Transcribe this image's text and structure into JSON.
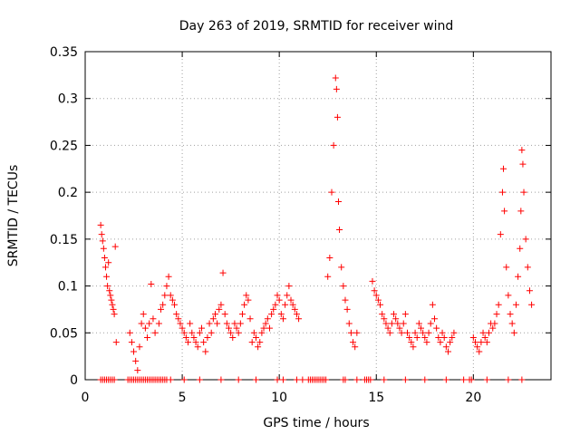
{
  "chart_data": {
    "type": "scatter",
    "title": "Day 263 of 2019, SRMTID for receiver wind",
    "xlabel": "GPS time / hours",
    "ylabel": "SRMTID / TECUs",
    "xlim": [
      0,
      24
    ],
    "ylim": [
      0,
      0.35
    ],
    "xticks": [
      0,
      5,
      10,
      15,
      20
    ],
    "xtick_labels": [
      "0",
      "5",
      "10",
      "15",
      "20"
    ],
    "yticks": [
      0,
      0.05,
      0.1,
      0.15,
      0.2,
      0.25,
      0.3,
      0.35
    ],
    "ytick_labels": [
      "0",
      "0.05",
      "0.1",
      "0.15",
      "0.2",
      "0.25",
      "0.3",
      "0.35"
    ],
    "grid": true,
    "marker": "+",
    "colors": {
      "series": "#ff0000",
      "axes": "#000000",
      "grid": "#a0a0a0"
    },
    "series": [
      {
        "name": "SRMTID",
        "points": [
          [
            0.8,
            0.165
          ],
          [
            0.85,
            0.155
          ],
          [
            0.9,
            0.148
          ],
          [
            0.95,
            0.14
          ],
          [
            1.0,
            0.13
          ],
          [
            1.05,
            0.12
          ],
          [
            1.1,
            0.11
          ],
          [
            1.15,
            0.1
          ],
          [
            1.2,
            0.125
          ],
          [
            1.25,
            0.095
          ],
          [
            1.3,
            0.09
          ],
          [
            1.35,
            0.085
          ],
          [
            1.4,
            0.08
          ],
          [
            1.45,
            0.075
          ],
          [
            1.5,
            0.07
          ],
          [
            1.55,
            0.142
          ],
          [
            1.6,
            0.04
          ],
          [
            2.3,
            0.05
          ],
          [
            2.4,
            0.04
          ],
          [
            2.5,
            0.03
          ],
          [
            2.6,
            0.02
          ],
          [
            2.7,
            0.01
          ],
          [
            2.8,
            0.035
          ],
          [
            2.9,
            0.06
          ],
          [
            3.0,
            0.07
          ],
          [
            3.1,
            0.055
          ],
          [
            3.2,
            0.045
          ],
          [
            3.3,
            0.06
          ],
          [
            3.4,
            0.102
          ],
          [
            3.5,
            0.065
          ],
          [
            3.6,
            0.05
          ],
          [
            3.8,
            0.06
          ],
          [
            3.9,
            0.075
          ],
          [
            4.0,
            0.08
          ],
          [
            4.1,
            0.09
          ],
          [
            4.2,
            0.1
          ],
          [
            4.3,
            0.11
          ],
          [
            4.4,
            0.09
          ],
          [
            4.5,
            0.085
          ],
          [
            4.6,
            0.08
          ],
          [
            4.7,
            0.07
          ],
          [
            4.8,
            0.065
          ],
          [
            4.9,
            0.06
          ],
          [
            5.0,
            0.055
          ],
          [
            5.1,
            0.05
          ],
          [
            5.2,
            0.045
          ],
          [
            5.3,
            0.04
          ],
          [
            5.4,
            0.06
          ],
          [
            5.5,
            0.05
          ],
          [
            5.6,
            0.045
          ],
          [
            5.7,
            0.04
          ],
          [
            5.8,
            0.035
          ],
          [
            5.9,
            0.05
          ],
          [
            6.0,
            0.055
          ],
          [
            6.1,
            0.04
          ],
          [
            6.2,
            0.03
          ],
          [
            6.3,
            0.045
          ],
          [
            6.4,
            0.06
          ],
          [
            6.5,
            0.05
          ],
          [
            6.6,
            0.065
          ],
          [
            6.7,
            0.07
          ],
          [
            6.8,
            0.06
          ],
          [
            6.9,
            0.075
          ],
          [
            7.0,
            0.08
          ],
          [
            7.1,
            0.114
          ],
          [
            7.2,
            0.07
          ],
          [
            7.3,
            0.06
          ],
          [
            7.4,
            0.055
          ],
          [
            7.5,
            0.05
          ],
          [
            7.6,
            0.045
          ],
          [
            7.7,
            0.06
          ],
          [
            7.8,
            0.055
          ],
          [
            7.9,
            0.05
          ],
          [
            8.0,
            0.06
          ],
          [
            8.1,
            0.07
          ],
          [
            8.2,
            0.08
          ],
          [
            8.3,
            0.09
          ],
          [
            8.4,
            0.085
          ],
          [
            8.5,
            0.065
          ],
          [
            8.6,
            0.04
          ],
          [
            8.7,
            0.05
          ],
          [
            8.8,
            0.045
          ],
          [
            8.9,
            0.035
          ],
          [
            9.0,
            0.04
          ],
          [
            9.1,
            0.05
          ],
          [
            9.2,
            0.055
          ],
          [
            9.3,
            0.06
          ],
          [
            9.4,
            0.065
          ],
          [
            9.5,
            0.055
          ],
          [
            9.6,
            0.07
          ],
          [
            9.7,
            0.075
          ],
          [
            9.8,
            0.08
          ],
          [
            9.9,
            0.09
          ],
          [
            10.0,
            0.085
          ],
          [
            10.1,
            0.07
          ],
          [
            10.2,
            0.065
          ],
          [
            10.3,
            0.08
          ],
          [
            10.4,
            0.09
          ],
          [
            10.5,
            0.1
          ],
          [
            10.6,
            0.085
          ],
          [
            10.7,
            0.08
          ],
          [
            10.8,
            0.075
          ],
          [
            10.9,
            0.07
          ],
          [
            11.0,
            0.065
          ],
          [
            12.5,
            0.11
          ],
          [
            12.6,
            0.13
          ],
          [
            12.7,
            0.2
          ],
          [
            12.8,
            0.25
          ],
          [
            12.9,
            0.322
          ],
          [
            12.95,
            0.31
          ],
          [
            13.0,
            0.28
          ],
          [
            13.05,
            0.19
          ],
          [
            13.1,
            0.16
          ],
          [
            13.2,
            0.12
          ],
          [
            13.3,
            0.1
          ],
          [
            13.4,
            0.085
          ],
          [
            13.5,
            0.075
          ],
          [
            13.6,
            0.06
          ],
          [
            13.7,
            0.05
          ],
          [
            13.8,
            0.04
          ],
          [
            13.9,
            0.035
          ],
          [
            14.0,
            0.05
          ],
          [
            14.8,
            0.105
          ],
          [
            14.9,
            0.095
          ],
          [
            15.0,
            0.09
          ],
          [
            15.1,
            0.085
          ],
          [
            15.2,
            0.08
          ],
          [
            15.3,
            0.07
          ],
          [
            15.4,
            0.065
          ],
          [
            15.5,
            0.06
          ],
          [
            15.6,
            0.055
          ],
          [
            15.7,
            0.05
          ],
          [
            15.8,
            0.06
          ],
          [
            15.9,
            0.07
          ],
          [
            16.0,
            0.065
          ],
          [
            16.1,
            0.06
          ],
          [
            16.2,
            0.055
          ],
          [
            16.3,
            0.05
          ],
          [
            16.4,
            0.06
          ],
          [
            16.5,
            0.07
          ],
          [
            16.6,
            0.05
          ],
          [
            16.7,
            0.045
          ],
          [
            16.8,
            0.04
          ],
          [
            16.9,
            0.035
          ],
          [
            17.0,
            0.05
          ],
          [
            17.1,
            0.045
          ],
          [
            17.2,
            0.06
          ],
          [
            17.3,
            0.055
          ],
          [
            17.4,
            0.05
          ],
          [
            17.5,
            0.045
          ],
          [
            17.6,
            0.04
          ],
          [
            17.7,
            0.05
          ],
          [
            17.8,
            0.06
          ],
          [
            17.9,
            0.08
          ],
          [
            18.0,
            0.065
          ],
          [
            18.1,
            0.055
          ],
          [
            18.2,
            0.045
          ],
          [
            18.3,
            0.04
          ],
          [
            18.4,
            0.05
          ],
          [
            18.5,
            0.045
          ],
          [
            18.6,
            0.035
          ],
          [
            18.7,
            0.03
          ],
          [
            18.8,
            0.04
          ],
          [
            18.9,
            0.045
          ],
          [
            19.0,
            0.05
          ],
          [
            20.0,
            0.045
          ],
          [
            20.1,
            0.04
          ],
          [
            20.2,
            0.035
          ],
          [
            20.3,
            0.03
          ],
          [
            20.4,
            0.04
          ],
          [
            20.5,
            0.05
          ],
          [
            20.6,
            0.045
          ],
          [
            20.7,
            0.04
          ],
          [
            20.8,
            0.05
          ],
          [
            20.9,
            0.06
          ],
          [
            21.0,
            0.055
          ],
          [
            21.1,
            0.06
          ],
          [
            21.2,
            0.07
          ],
          [
            21.3,
            0.08
          ],
          [
            21.4,
            0.155
          ],
          [
            21.5,
            0.2
          ],
          [
            21.55,
            0.225
          ],
          [
            21.6,
            0.18
          ],
          [
            21.7,
            0.12
          ],
          [
            21.8,
            0.09
          ],
          [
            21.9,
            0.07
          ],
          [
            22.0,
            0.06
          ],
          [
            22.1,
            0.05
          ],
          [
            22.2,
            0.08
          ],
          [
            22.3,
            0.11
          ],
          [
            22.4,
            0.14
          ],
          [
            22.45,
            0.18
          ],
          [
            22.5,
            0.245
          ],
          [
            22.55,
            0.23
          ],
          [
            22.6,
            0.2
          ],
          [
            22.7,
            0.15
          ],
          [
            22.8,
            0.12
          ],
          [
            22.9,
            0.095
          ],
          [
            23.0,
            0.08
          ]
        ],
        "zero_points_x": [
          0.8,
          0.9,
          1.0,
          1.1,
          1.2,
          1.3,
          1.4,
          1.5,
          2.2,
          2.3,
          2.4,
          2.5,
          2.6,
          2.7,
          2.8,
          2.9,
          3.0,
          3.1,
          3.2,
          3.3,
          3.4,
          3.5,
          3.6,
          3.7,
          3.8,
          3.9,
          4.0,
          4.1,
          4.2,
          4.4,
          5.1,
          5.9,
          7.0,
          7.9,
          8.8,
          9.9,
          10.2,
          10.9,
          11.2,
          11.5,
          11.6,
          11.7,
          11.8,
          11.9,
          12.0,
          12.1,
          12.2,
          12.3,
          12.4,
          13.3,
          13.4,
          14.0,
          14.4,
          14.5,
          14.6,
          14.7,
          15.4,
          16.5,
          17.5,
          18.6,
          19.5,
          19.8,
          19.9,
          20.7,
          21.8,
          22.5
        ]
      }
    ]
  }
}
